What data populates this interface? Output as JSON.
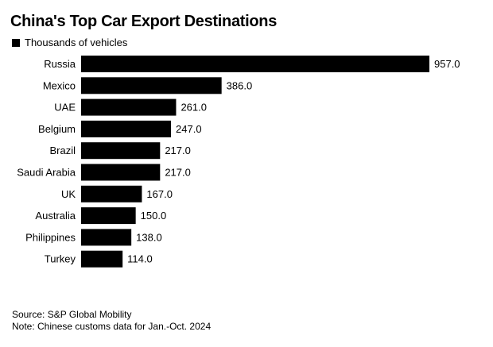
{
  "chart_data": {
    "type": "bar",
    "orientation": "horizontal",
    "title": "China's Top Car Export Destinations",
    "legend": [
      "Thousands of vehicles"
    ],
    "categories": [
      "Russia",
      "Mexico",
      "UAE",
      "Belgium",
      "Brazil",
      "Saudi Arabia",
      "UK",
      "Australia",
      "Philippines",
      "Turkey"
    ],
    "values": [
      957.0,
      386.0,
      261.0,
      247.0,
      217.0,
      217.0,
      167.0,
      150.0,
      138.0,
      114.0
    ],
    "value_labels": [
      "957.0",
      "386.0",
      "261.0",
      "247.0",
      "217.0",
      "217.0",
      "167.0",
      "150.0",
      "138.0",
      "114.0"
    ],
    "xlim": [
      0,
      957.0
    ],
    "grid": false,
    "bar_color": "#000000",
    "source": "Source: S&P Global Mobility",
    "note": "Note: Chinese customs data for Jan.-Oct. 2024"
  }
}
